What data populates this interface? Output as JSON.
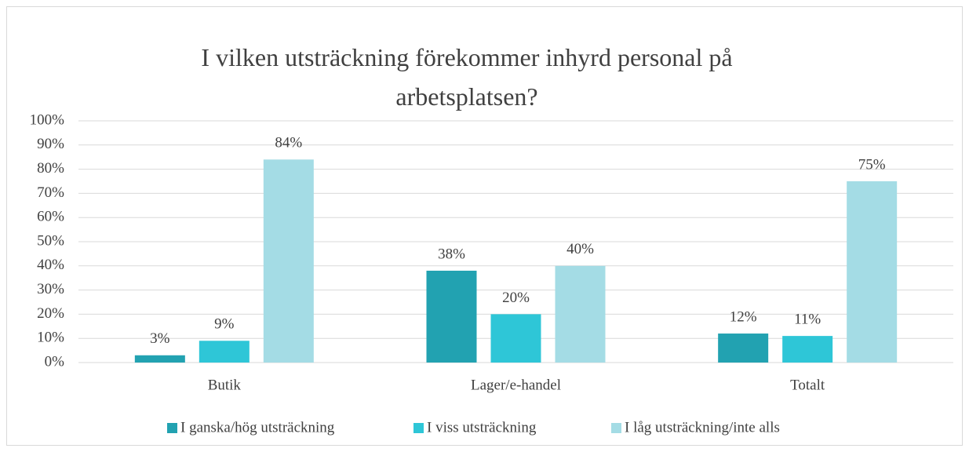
{
  "chart_data": {
    "type": "bar",
    "title": "I vilken utsträckning förekommer inhyrd personal på arbetsplatsen?",
    "categories": [
      "Butik",
      "Lager/e-handel",
      "Totalt"
    ],
    "series": [
      {
        "name": "I ganska/hög utsträckning",
        "color": "#22a2b1",
        "values": [
          3,
          38,
          12
        ],
        "value_labels": [
          "3%",
          "38%",
          "12%"
        ]
      },
      {
        "name": "I viss utsträckning",
        "color": "#2ec6d7",
        "values": [
          9,
          20,
          11
        ],
        "value_labels": [
          "9%",
          "20%",
          "11%"
        ]
      },
      {
        "name": "I låg utsträckning/inte alls",
        "color": "#a4dce5",
        "values": [
          84,
          40,
          75
        ],
        "value_labels": [
          "84%",
          "40%",
          "75%"
        ]
      }
    ],
    "ylim": [
      0,
      100
    ],
    "yticks": [
      {
        "value": 0,
        "label": "0%"
      },
      {
        "value": 10,
        "label": "10%"
      },
      {
        "value": 20,
        "label": "20%"
      },
      {
        "value": 30,
        "label": "30%"
      },
      {
        "value": 40,
        "label": "40%"
      },
      {
        "value": 50,
        "label": "50%"
      },
      {
        "value": 60,
        "label": "60%"
      },
      {
        "value": 70,
        "label": "70%"
      },
      {
        "value": 80,
        "label": "80%"
      },
      {
        "value": 90,
        "label": "90%"
      },
      {
        "value": 100,
        "label": "100%"
      }
    ],
    "grid": true,
    "legend": "bottom"
  }
}
